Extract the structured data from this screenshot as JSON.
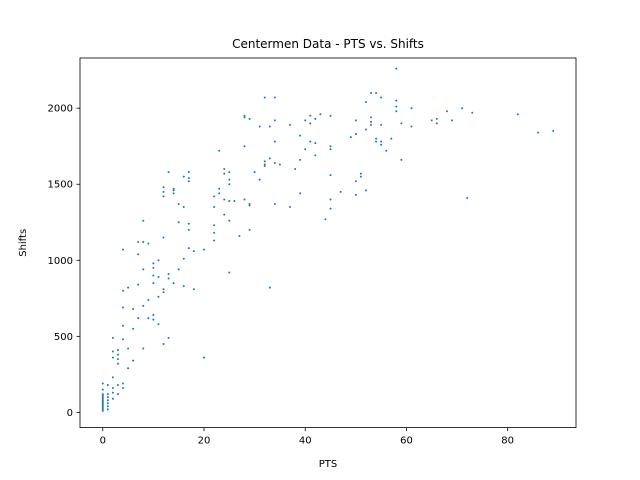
{
  "chart_data": {
    "type": "scatter",
    "title": "Centermen Data - PTS vs. Shifts",
    "xlabel": "PTS",
    "ylabel": "Shifts",
    "xlim": [
      -4.5,
      93.5
    ],
    "ylim": [
      -100,
      2330
    ],
    "xticks": [
      0,
      20,
      40,
      60,
      80
    ],
    "yticks": [
      0,
      500,
      1000,
      1500,
      2000
    ],
    "grid": false,
    "point_color": "#1f77b4",
    "series": [
      {
        "points": [
          [
            0,
            10
          ],
          [
            0,
            20
          ],
          [
            0,
            30
          ],
          [
            0,
            40
          ],
          [
            0,
            50
          ],
          [
            0,
            60
          ],
          [
            0,
            70
          ],
          [
            0,
            80
          ],
          [
            0,
            90
          ],
          [
            0,
            100
          ],
          [
            0,
            110
          ],
          [
            0,
            120
          ],
          [
            0,
            150
          ],
          [
            0,
            190
          ],
          [
            1,
            20
          ],
          [
            1,
            40
          ],
          [
            1,
            60
          ],
          [
            1,
            80
          ],
          [
            1,
            100
          ],
          [
            1,
            120
          ],
          [
            1,
            180
          ],
          [
            2,
            90
          ],
          [
            2,
            130
          ],
          [
            2,
            160
          ],
          [
            2,
            230
          ],
          [
            2,
            360
          ],
          [
            2,
            400
          ],
          [
            2,
            490
          ],
          [
            3,
            120
          ],
          [
            3,
            180
          ],
          [
            3,
            320
          ],
          [
            3,
            350
          ],
          [
            3,
            380
          ],
          [
            3,
            410
          ],
          [
            4,
            160
          ],
          [
            4,
            190
          ],
          [
            4,
            480
          ],
          [
            4,
            570
          ],
          [
            4,
            690
          ],
          [
            4,
            800
          ],
          [
            4,
            1070
          ],
          [
            5,
            290
          ],
          [
            5,
            420
          ],
          [
            5,
            820
          ],
          [
            6,
            340
          ],
          [
            6,
            550
          ],
          [
            6,
            680
          ],
          [
            7,
            620
          ],
          [
            7,
            840
          ],
          [
            7,
            1040
          ],
          [
            7,
            1120
          ],
          [
            8,
            420
          ],
          [
            8,
            700
          ],
          [
            8,
            940
          ],
          [
            8,
            1120
          ],
          [
            8,
            1260
          ],
          [
            9,
            620
          ],
          [
            9,
            740
          ],
          [
            9,
            1110
          ],
          [
            10,
            610
          ],
          [
            10,
            640
          ],
          [
            10,
            850
          ],
          [
            10,
            900
          ],
          [
            10,
            950
          ],
          [
            10,
            980
          ],
          [
            11,
            580
          ],
          [
            11,
            760
          ],
          [
            11,
            890
          ],
          [
            11,
            1000
          ],
          [
            12,
            450
          ],
          [
            12,
            790
          ],
          [
            12,
            810
          ],
          [
            12,
            1150
          ],
          [
            12,
            1420
          ],
          [
            12,
            1450
          ],
          [
            12,
            1480
          ],
          [
            13,
            490
          ],
          [
            13,
            880
          ],
          [
            13,
            910
          ],
          [
            13,
            1580
          ],
          [
            14,
            850
          ],
          [
            14,
            1440
          ],
          [
            14,
            1460
          ],
          [
            14,
            1470
          ],
          [
            15,
            940
          ],
          [
            15,
            1250
          ],
          [
            15,
            1370
          ],
          [
            16,
            830
          ],
          [
            16,
            1010
          ],
          [
            16,
            1350
          ],
          [
            16,
            1550
          ],
          [
            17,
            1080
          ],
          [
            17,
            1200
          ],
          [
            17,
            1240
          ],
          [
            17,
            1520
          ],
          [
            17,
            1540
          ],
          [
            17,
            1580
          ],
          [
            18,
            810
          ],
          [
            18,
            1060
          ],
          [
            20,
            360
          ],
          [
            20,
            1070
          ],
          [
            22,
            1130
          ],
          [
            22,
            1180
          ],
          [
            22,
            1230
          ],
          [
            22,
            1350
          ],
          [
            22,
            1420
          ],
          [
            23,
            1440
          ],
          [
            23,
            1470
          ],
          [
            23,
            1720
          ],
          [
            24,
            1300
          ],
          [
            24,
            1400
          ],
          [
            24,
            1570
          ],
          [
            24,
            1600
          ],
          [
            25,
            920
          ],
          [
            25,
            1260
          ],
          [
            25,
            1390
          ],
          [
            25,
            1500
          ],
          [
            25,
            1530
          ],
          [
            25,
            1580
          ],
          [
            26,
            1390
          ],
          [
            27,
            1160
          ],
          [
            28,
            1400
          ],
          [
            28,
            1750
          ],
          [
            28,
            1940
          ],
          [
            28,
            1950
          ],
          [
            29,
            1200
          ],
          [
            29,
            1360
          ],
          [
            29,
            1370
          ],
          [
            29,
            1930
          ],
          [
            30,
            1580
          ],
          [
            31,
            1530
          ],
          [
            31,
            1880
          ],
          [
            32,
            1620
          ],
          [
            32,
            1630
          ],
          [
            32,
            1650
          ],
          [
            32,
            2070
          ],
          [
            33,
            820
          ],
          [
            33,
            1670
          ],
          [
            33,
            1880
          ],
          [
            34,
            1370
          ],
          [
            34,
            1640
          ],
          [
            34,
            1780
          ],
          [
            34,
            1920
          ],
          [
            34,
            2070
          ],
          [
            35,
            1630
          ],
          [
            37,
            1350
          ],
          [
            37,
            1890
          ],
          [
            38,
            1600
          ],
          [
            39,
            1440
          ],
          [
            39,
            1660
          ],
          [
            39,
            1820
          ],
          [
            40,
            1730
          ],
          [
            40,
            1920
          ],
          [
            41,
            1780
          ],
          [
            41,
            1900
          ],
          [
            41,
            1950
          ],
          [
            42,
            1690
          ],
          [
            42,
            1770
          ],
          [
            42,
            1930
          ],
          [
            43,
            1960
          ],
          [
            44,
            1270
          ],
          [
            45,
            1340
          ],
          [
            45,
            1400
          ],
          [
            45,
            1560
          ],
          [
            45,
            1730
          ],
          [
            45,
            1750
          ],
          [
            45,
            1950
          ],
          [
            47,
            1450
          ],
          [
            49,
            1810
          ],
          [
            50,
            1430
          ],
          [
            50,
            1520
          ],
          [
            50,
            1830
          ],
          [
            50,
            1920
          ],
          [
            51,
            1550
          ],
          [
            51,
            1570
          ],
          [
            52,
            1460
          ],
          [
            52,
            1860
          ],
          [
            52,
            2040
          ],
          [
            53,
            1890
          ],
          [
            53,
            1910
          ],
          [
            53,
            1940
          ],
          [
            53,
            2100
          ],
          [
            54,
            1780
          ],
          [
            54,
            1800
          ],
          [
            54,
            2100
          ],
          [
            55,
            1760
          ],
          [
            55,
            1780
          ],
          [
            55,
            1890
          ],
          [
            55,
            2070
          ],
          [
            56,
            1720
          ],
          [
            57,
            1800
          ],
          [
            58,
            1980
          ],
          [
            58,
            2010
          ],
          [
            58,
            2050
          ],
          [
            58,
            2260
          ],
          [
            59,
            1660
          ],
          [
            59,
            1900
          ],
          [
            61,
            1880
          ],
          [
            61,
            2000
          ],
          [
            65,
            1920
          ],
          [
            66,
            1900
          ],
          [
            66,
            1930
          ],
          [
            68,
            1980
          ],
          [
            69,
            1920
          ],
          [
            71,
            2000
          ],
          [
            72,
            1410
          ],
          [
            73,
            1970
          ],
          [
            82,
            1960
          ],
          [
            86,
            1840
          ],
          [
            89,
            1850
          ]
        ]
      }
    ]
  }
}
